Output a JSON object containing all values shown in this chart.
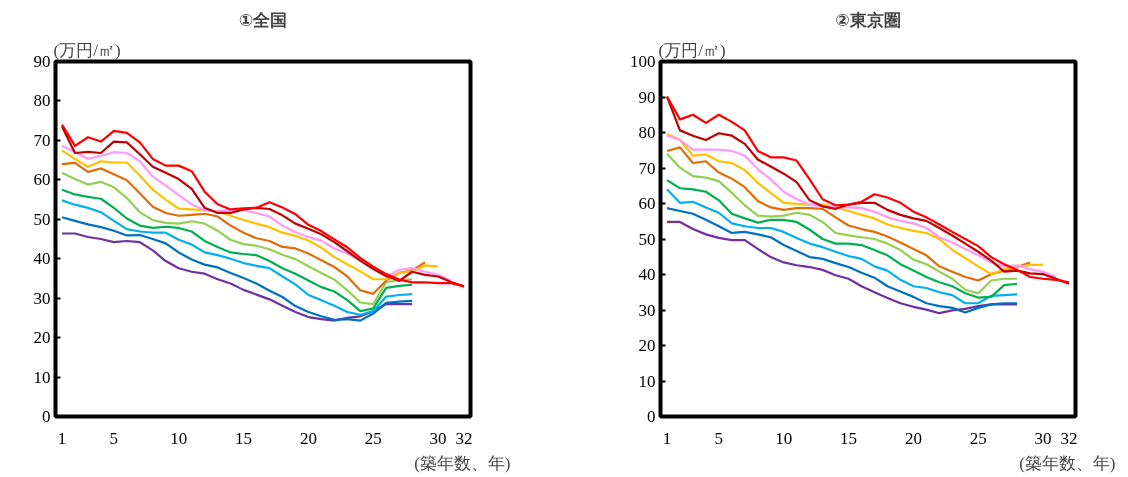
{
  "chart_data": [
    {
      "type": "line",
      "title": "①全国",
      "ylabel": "(万円/㎡)",
      "xlabel": "(築年数、年)",
      "grid": false,
      "line_style": "solid",
      "marker": "none",
      "x": [
        1,
        2,
        3,
        4,
        5,
        6,
        7,
        8,
        9,
        10,
        11,
        12,
        13,
        14,
        15,
        16,
        17,
        18,
        19,
        20,
        21,
        22,
        23,
        24,
        25,
        26,
        27,
        28,
        29,
        30,
        31,
        32
      ],
      "xlim": [
        0.5,
        32.5
      ],
      "xticks": [
        1,
        5,
        10,
        15,
        20,
        25,
        30,
        32
      ],
      "ylim": [
        0,
        90
      ],
      "yticks": [
        0,
        10,
        20,
        30,
        40,
        50,
        60,
        70,
        80,
        90
      ],
      "series": [
        {
          "color": "#7030a0",
          "values": [
            46.4,
            46.4,
            45.5,
            45.0,
            44.2,
            44.5,
            44.2,
            42.1,
            39.4,
            37.6,
            36.7,
            36.2,
            34.8,
            33.7,
            32.1,
            30.9,
            29.7,
            28.1,
            26.5,
            25.2,
            24.7,
            24.3,
            25.0,
            25.4,
            26.7,
            28.5,
            28.5,
            28.5,
            null,
            null,
            null,
            null
          ]
        },
        {
          "color": "#0070c0",
          "values": [
            50.5,
            49.6,
            48.7,
            48.0,
            47.1,
            45.9,
            46.0,
            45.0,
            43.9,
            41.6,
            39.8,
            38.5,
            37.8,
            36.4,
            35.1,
            33.7,
            31.9,
            30.3,
            28.0,
            26.5,
            25.4,
            24.5,
            24.7,
            24.3,
            26.1,
            28.8,
            29.1,
            29.3,
            null,
            null,
            null,
            null
          ]
        },
        {
          "color": "#00b0f0",
          "values": [
            54.8,
            53.7,
            52.9,
            51.8,
            49.6,
            47.5,
            46.9,
            46.6,
            46.6,
            44.8,
            43.6,
            41.6,
            40.9,
            40.0,
            38.9,
            38.2,
            37.6,
            35.5,
            33.5,
            30.8,
            29.5,
            28.1,
            26.5,
            25.8,
            26.7,
            30.4,
            30.8,
            31.0,
            null,
            null,
            null,
            null
          ]
        },
        {
          "color": "#00b050",
          "values": [
            57.5,
            56.3,
            55.7,
            55.2,
            52.9,
            50.2,
            48.4,
            47.8,
            48.1,
            47.8,
            46.9,
            44.5,
            43.0,
            41.6,
            41.2,
            40.9,
            39.4,
            37.6,
            36.2,
            34.5,
            32.8,
            31.7,
            29.5,
            26.7,
            27.4,
            32.6,
            33.1,
            33.4,
            null,
            null,
            null,
            null
          ]
        },
        {
          "color": "#92d050",
          "values": [
            61.8,
            60.2,
            58.8,
            59.5,
            58.1,
            55.4,
            51.8,
            49.8,
            49.1,
            48.9,
            49.5,
            48.9,
            47.1,
            44.8,
            43.7,
            43.3,
            42.4,
            41.0,
            39.9,
            38.1,
            36.4,
            34.7,
            32.0,
            28.9,
            28.5,
            34.1,
            34.5,
            34.8,
            null,
            null,
            null,
            null
          ]
        },
        {
          "color": "#e36c09",
          "values": [
            64.0,
            64.3,
            62.0,
            62.9,
            61.4,
            59.9,
            56.6,
            53.2,
            51.6,
            50.9,
            51.1,
            51.4,
            50.7,
            48.4,
            46.6,
            45.2,
            44.5,
            43.0,
            42.6,
            41.3,
            39.6,
            37.9,
            35.5,
            32.0,
            31.1,
            34.5,
            36.4,
            37.0,
            39.1,
            null,
            null,
            null
          ]
        },
        {
          "color": "#ffc000",
          "values": [
            67.4,
            65.3,
            63.3,
            64.7,
            64.4,
            64.4,
            61.1,
            57.5,
            55.0,
            52.7,
            52.5,
            52.3,
            52.0,
            50.9,
            49.8,
            48.9,
            48.0,
            46.6,
            45.8,
            44.6,
            42.8,
            40.4,
            38.6,
            36.8,
            34.8,
            34.8,
            36.4,
            36.8,
            38.3,
            38.0,
            null,
            null
          ]
        },
        {
          "color": "#ff99ff",
          "values": [
            68.6,
            67.1,
            65.3,
            66.1,
            67.0,
            66.8,
            64.7,
            60.8,
            58.6,
            56.1,
            53.8,
            52.3,
            52.0,
            52.3,
            52.3,
            51.6,
            50.7,
            48.4,
            46.7,
            45.5,
            44.6,
            42.6,
            41.3,
            39.6,
            37.6,
            35.4,
            37.2,
            37.6,
            36.7,
            36.0,
            34.5,
            null
          ]
        },
        {
          "color": "#c00000",
          "values": [
            73.5,
            66.8,
            67.1,
            66.8,
            69.7,
            69.5,
            66.5,
            63.3,
            61.8,
            60.2,
            57.7,
            52.9,
            51.6,
            51.6,
            52.5,
            52.9,
            52.6,
            51.0,
            48.9,
            47.6,
            46.2,
            44.2,
            41.9,
            39.5,
            37.4,
            35.6,
            34.4,
            36.7,
            35.9,
            35.5,
            34.1,
            33.0
          ]
        },
        {
          "color": "#ff0000",
          "values": [
            74.0,
            68.6,
            70.8,
            69.7,
            72.4,
            71.9,
            69.5,
            65.3,
            63.6,
            63.6,
            62.2,
            57.0,
            53.8,
            52.5,
            52.8,
            52.9,
            54.3,
            53.0,
            51.3,
            48.6,
            47.0,
            44.9,
            42.9,
            40.2,
            38.0,
            36.1,
            34.7,
            34.0,
            34.0,
            33.8,
            33.8,
            33.0
          ]
        }
      ]
    },
    {
      "type": "line",
      "title": "②東京圏",
      "ylabel": "(万円/㎡)",
      "xlabel": "(築年数、年)",
      "grid": false,
      "line_style": "solid",
      "marker": "none",
      "x": [
        1,
        2,
        3,
        4,
        5,
        6,
        7,
        8,
        9,
        10,
        11,
        12,
        13,
        14,
        15,
        16,
        17,
        18,
        19,
        20,
        21,
        22,
        23,
        24,
        25,
        26,
        27,
        28,
        29,
        30,
        31,
        32
      ],
      "xlim": [
        0.5,
        32.5
      ],
      "xticks": [
        1,
        5,
        10,
        15,
        20,
        25,
        30,
        32
      ],
      "ylim": [
        0,
        100
      ],
      "yticks": [
        0,
        10,
        20,
        30,
        40,
        50,
        60,
        70,
        80,
        90,
        100
      ],
      "series": [
        {
          "color": "#7030a0",
          "values": [
            54.8,
            54.8,
            52.8,
            51.3,
            50.3,
            49.7,
            49.7,
            47.2,
            44.9,
            43.4,
            42.6,
            42.1,
            41.3,
            39.8,
            38.8,
            36.7,
            35.0,
            33.4,
            31.9,
            30.9,
            30.1,
            29.1,
            29.9,
            30.3,
            31.1,
            31.6,
            31.6,
            31.6,
            null,
            null,
            null,
            null
          ]
        },
        {
          "color": "#0070c0",
          "values": [
            58.7,
            57.9,
            57.1,
            55.4,
            53.6,
            51.7,
            52.0,
            51.3,
            50.5,
            48.3,
            46.6,
            44.9,
            44.4,
            43.2,
            42.1,
            40.5,
            39.1,
            36.7,
            35.2,
            33.7,
            31.9,
            31.1,
            30.6,
            29.3,
            30.6,
            31.6,
            31.9,
            31.9,
            null,
            null,
            null,
            null
          ]
        },
        {
          "color": "#00b0f0",
          "values": [
            64.0,
            60.2,
            60.5,
            58.9,
            57.4,
            54.4,
            53.6,
            53.1,
            53.1,
            52.0,
            50.3,
            48.7,
            47.7,
            46.4,
            45.2,
            44.4,
            42.3,
            41.1,
            38.5,
            36.7,
            36.2,
            35.0,
            34.2,
            31.9,
            31.9,
            34.0,
            34.2,
            34.4,
            null,
            null,
            null,
            null
          ]
        },
        {
          "color": "#00b050",
          "values": [
            66.6,
            64.3,
            64.0,
            63.3,
            60.9,
            57.1,
            55.8,
            54.6,
            55.4,
            55.4,
            54.8,
            52.6,
            50.0,
            48.7,
            48.7,
            48.3,
            46.9,
            45.4,
            42.9,
            41.1,
            39.3,
            37.8,
            36.7,
            34.7,
            33.5,
            33.7,
            37.0,
            37.4,
            null,
            null,
            null,
            null
          ]
        },
        {
          "color": "#92d050",
          "values": [
            74.0,
            70.1,
            67.7,
            67.3,
            66.3,
            63.0,
            59.5,
            56.6,
            56.3,
            56.6,
            57.4,
            56.8,
            54.8,
            51.7,
            51.0,
            50.5,
            50.0,
            48.7,
            46.9,
            44.2,
            42.9,
            40.8,
            38.8,
            35.7,
            34.7,
            38.3,
            38.8,
            38.8,
            null,
            null,
            null,
            null
          ]
        },
        {
          "color": "#e36c09",
          "values": [
            74.8,
            75.8,
            71.4,
            71.9,
            68.7,
            67.0,
            64.6,
            60.7,
            58.9,
            58.2,
            58.7,
            58.7,
            58.5,
            56.1,
            53.8,
            52.8,
            52.0,
            50.7,
            49.0,
            47.2,
            45.4,
            42.3,
            40.8,
            39.3,
            38.3,
            40.1,
            41.1,
            42.1,
            43.4,
            null,
            null,
            null
          ]
        },
        {
          "color": "#ffc000",
          "values": [
            79.6,
            77.9,
            73.5,
            73.8,
            71.9,
            71.4,
            69.4,
            65.8,
            63.0,
            60.2,
            59.9,
            59.7,
            59.7,
            58.9,
            57.9,
            56.8,
            55.8,
            54.1,
            53.1,
            52.3,
            51.7,
            50.0,
            46.9,
            44.6,
            42.3,
            40.1,
            41.5,
            42.1,
            42.7,
            42.7,
            null,
            null
          ]
        },
        {
          "color": "#ff99ff",
          "values": [
            79.1,
            77.9,
            75.2,
            75.2,
            75.2,
            74.8,
            73.5,
            69.7,
            66.8,
            63.3,
            61.2,
            59.7,
            59.2,
            58.9,
            58.9,
            58.7,
            57.7,
            56.1,
            55.1,
            54.4,
            53.1,
            50.5,
            49.0,
            47.2,
            45.4,
            43.4,
            42.3,
            42.6,
            41.5,
            40.8,
            39.3,
            null
          ]
        },
        {
          "color": "#c00000",
          "values": [
            90.1,
            80.6,
            79.1,
            77.9,
            79.8,
            79.1,
            76.8,
            72.4,
            70.4,
            68.4,
            66.0,
            60.9,
            59.2,
            58.5,
            59.7,
            60.2,
            60.2,
            58.2,
            56.8,
            55.8,
            55.1,
            53.1,
            51.0,
            48.7,
            46.4,
            43.9,
            40.8,
            41.1,
            40.3,
            40.1,
            38.8,
            37.4
          ]
        },
        {
          "color": "#ff0000",
          "values": [
            90.1,
            83.7,
            85.0,
            82.7,
            85.0,
            83.0,
            80.6,
            74.8,
            73.0,
            73.0,
            72.1,
            66.8,
            61.2,
            59.5,
            59.7,
            60.5,
            62.6,
            61.7,
            60.2,
            57.7,
            56.1,
            54.1,
            52.0,
            50.0,
            48.0,
            44.9,
            42.9,
            41.3,
            39.3,
            38.8,
            38.5,
            37.8
          ]
        }
      ]
    }
  ]
}
